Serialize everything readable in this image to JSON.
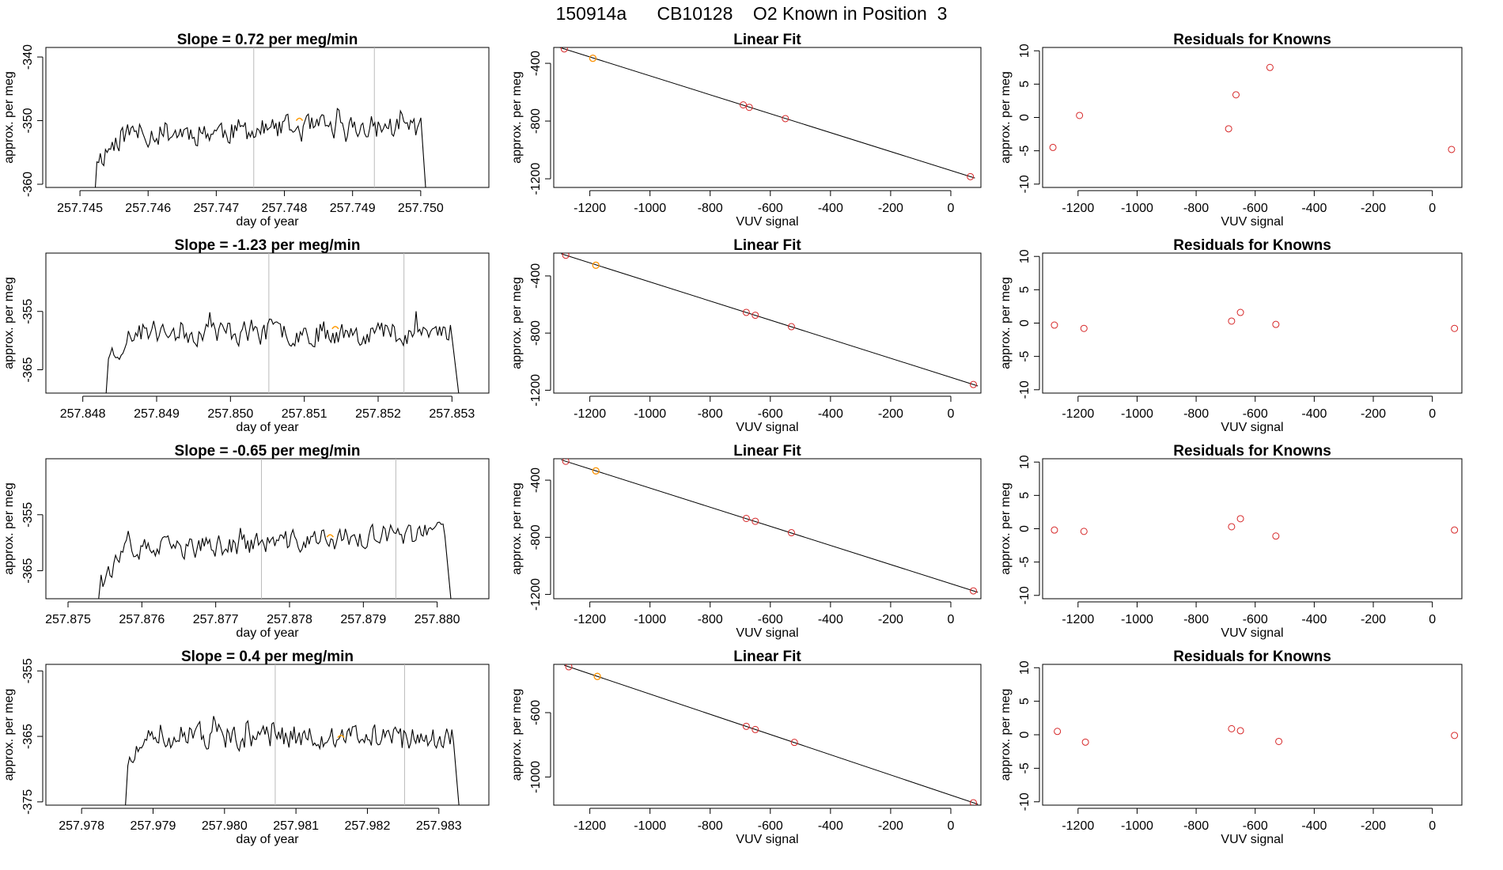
{
  "title": "150914a      CB10128    O2 Known in Position  3",
  "colors": {
    "line": "#000000",
    "point": "#d62728",
    "highlight": "#ff9900",
    "guide": "#bbbbbb",
    "axis": "#000000"
  },
  "chart_data": [
    {
      "type": "line",
      "title": "Slope =  0.72  per meg/min",
      "xlabel": "day of year",
      "ylabel": "approx. per meg",
      "xlim": [
        257.7445,
        257.751
      ],
      "ylim": [
        -360.5,
        -338.5
      ],
      "xticks": [
        "257.745",
        "257.746",
        "257.747",
        "257.748",
        "257.749",
        "257.750"
      ],
      "yticks": [
        "-340",
        "-350",
        "-360"
      ],
      "vlines": [
        257.74755,
        257.74932
      ],
      "highlight": {
        "x": 257.74822,
        "y": -350
      },
      "trace": {
        "x_start": 257.7452,
        "x_end": 257.7501,
        "baseline": -351.5,
        "amplitude": 2.8,
        "drift": 0.6,
        "seed": 11,
        "start_y": -365,
        "end_y": -365
      }
    },
    {
      "type": "line",
      "title": "Slope =  -1.23  per meg/min",
      "xlabel": "day of year",
      "ylabel": "approx. per meg",
      "xlim": [
        257.8475,
        257.8535
      ],
      "ylim": [
        -369,
        -345
      ],
      "xticks": [
        "257.848",
        "257.849",
        "257.850",
        "257.851",
        "257.852",
        "257.853"
      ],
      "yticks": [
        "-355",
        "-365"
      ],
      "vlines": [
        257.85052,
        257.85235
      ],
      "highlight": {
        "x": 257.85142,
        "y": -358
      },
      "trace": {
        "x_start": 257.8483,
        "x_end": 257.8531,
        "baseline": -358.5,
        "amplitude": 3.0,
        "drift": 0.0,
        "seed": 23,
        "start_y": -372,
        "end_y": -370
      }
    },
    {
      "type": "line",
      "title": "Slope =  -0.65  per meg/min",
      "xlabel": "day of year",
      "ylabel": "approx. per meg",
      "xlim": [
        257.8747,
        257.8807
      ],
      "ylim": [
        -370,
        -345
      ],
      "xticks": [
        "257.875",
        "257.876",
        "257.877",
        "257.878",
        "257.879",
        "257.880"
      ],
      "yticks": [
        "-355",
        "-365"
      ],
      "vlines": [
        257.87762,
        257.87944
      ],
      "highlight": {
        "x": 257.87855,
        "y": -359
      },
      "trace": {
        "x_start": 257.8754,
        "x_end": 257.8802,
        "baseline": -360,
        "amplitude": 2.8,
        "drift": 1.8,
        "seed": 37,
        "start_y": -372,
        "end_y": -372
      }
    },
    {
      "type": "line",
      "title": "Slope =  0.4  per meg/min",
      "xlabel": "day of year",
      "ylabel": "approx. per meg",
      "xlim": [
        257.9775,
        257.9837
      ],
      "ylim": [
        -375.5,
        -354
      ],
      "xticks": [
        "257.978",
        "257.979",
        "257.980",
        "257.981",
        "257.982",
        "257.983"
      ],
      "yticks": [
        "-355",
        "-365",
        "-375"
      ],
      "vlines": [
        257.98071,
        257.98252
      ],
      "highlight": {
        "x": 257.98163,
        "y": -365.2
      },
      "trace": {
        "x_start": 257.9786,
        "x_end": 257.9833,
        "baseline": -365,
        "amplitude": 2.6,
        "drift": 0.0,
        "seed": 51,
        "start_y": -378,
        "end_y": -378
      }
    },
    {
      "type": "scatter",
      "title": "Linear Fit",
      "xlabel": "VUV signal",
      "ylabel": "approx. per meg",
      "xlim": [
        -1320,
        100
      ],
      "ylim": [
        -1260,
        -290
      ],
      "xticks": [
        -1200,
        -1000,
        -800,
        -600,
        -400,
        -200,
        0
      ],
      "yticks": [
        -400,
        -800,
        -1200
      ],
      "fit_line": [
        [
          -1285,
          -300
        ],
        [
          65,
          -1185
        ]
      ],
      "points": [
        [
          -1285,
          -300
        ],
        [
          -1190,
          -365
        ],
        [
          -690,
          -688
        ],
        [
          -670,
          -705
        ],
        [
          -550,
          -783
        ],
        [
          65,
          -1185
        ]
      ],
      "highlight_points": [
        [
          -1190,
          -365
        ]
      ]
    },
    {
      "type": "scatter",
      "title": "Linear Fit",
      "xlabel": "VUV signal",
      "ylabel": "approx. per meg",
      "xlim": [
        -1320,
        100
      ],
      "ylim": [
        -1220,
        -240
      ],
      "xticks": [
        -1200,
        -1000,
        -800,
        -600,
        -400,
        -200,
        0
      ],
      "yticks": [
        -400,
        -800,
        -1200
      ],
      "fit_line": [
        [
          -1280,
          -255
        ],
        [
          75,
          -1160
        ]
      ],
      "points": [
        [
          -1280,
          -255
        ],
        [
          -1180,
          -325
        ],
        [
          -680,
          -655
        ],
        [
          -650,
          -675
        ],
        [
          -530,
          -755
        ],
        [
          75,
          -1160
        ]
      ],
      "highlight_points": [
        [
          -1180,
          -325
        ]
      ]
    },
    {
      "type": "scatter",
      "title": "Linear Fit",
      "xlabel": "VUV signal",
      "ylabel": "approx. per meg",
      "xlim": [
        -1320,
        100
      ],
      "ylim": [
        -1230,
        -250
      ],
      "xticks": [
        -1200,
        -1000,
        -800,
        -600,
        -400,
        -200,
        0
      ],
      "yticks": [
        -400,
        -800,
        -1200
      ],
      "fit_line": [
        [
          -1280,
          -268
        ],
        [
          75,
          -1175
        ]
      ],
      "points": [
        [
          -1280,
          -268
        ],
        [
          -1180,
          -335
        ],
        [
          -680,
          -668
        ],
        [
          -650,
          -688
        ],
        [
          -530,
          -768
        ],
        [
          75,
          -1175
        ]
      ],
      "highlight_points": [
        [
          -1180,
          -335
        ]
      ]
    },
    {
      "type": "scatter",
      "title": "Linear Fit",
      "xlabel": "VUV signal",
      "ylabel": "approx. per meg",
      "xlim": [
        -1320,
        100
      ],
      "ylim": [
        -1175,
        -300
      ],
      "xticks": [
        -1200,
        -1000,
        -800,
        -600,
        -400,
        -200,
        0
      ],
      "yticks": [
        -600,
        -1000
      ],
      "fit_line": [
        [
          -1270,
          -315
        ],
        [
          75,
          -1160
        ]
      ],
      "points": [
        [
          -1270,
          -315
        ],
        [
          -1175,
          -375
        ],
        [
          -680,
          -685
        ],
        [
          -650,
          -705
        ],
        [
          -520,
          -785
        ],
        [
          75,
          -1160
        ]
      ],
      "highlight_points": [
        [
          -1175,
          -375
        ]
      ]
    },
    {
      "type": "scatter",
      "title": "Residuals for Knowns",
      "xlabel": "VUV signal",
      "ylabel": "approx. per meg",
      "xlim": [
        -1320,
        100
      ],
      "ylim": [
        -10.5,
        10.5
      ],
      "xticks": [
        -1200,
        -1000,
        -800,
        -600,
        -400,
        -200,
        0
      ],
      "yticks": [
        10,
        5,
        0,
        -5,
        -10
      ],
      "points": [
        [
          -1285,
          -4.5
        ],
        [
          -1195,
          0.3
        ],
        [
          -690,
          -1.7
        ],
        [
          -665,
          3.4
        ],
        [
          -550,
          7.5
        ],
        [
          65,
          -4.8
        ]
      ]
    },
    {
      "type": "scatter",
      "title": "Residuals for Knowns",
      "xlabel": "VUV signal",
      "ylabel": "approx. per meg",
      "xlim": [
        -1320,
        100
      ],
      "ylim": [
        -10.5,
        10.5
      ],
      "xticks": [
        -1200,
        -1000,
        -800,
        -600,
        -400,
        -200,
        0
      ],
      "yticks": [
        10,
        5,
        0,
        -5,
        -10
      ],
      "points": [
        [
          -1280,
          -0.3
        ],
        [
          -1180,
          -0.8
        ],
        [
          -680,
          0.3
        ],
        [
          -650,
          1.6
        ],
        [
          -530,
          -0.2
        ],
        [
          75,
          -0.8
        ]
      ]
    },
    {
      "type": "scatter",
      "title": "Residuals for Knowns",
      "xlabel": "VUV signal",
      "ylabel": "approx. per meg",
      "xlim": [
        -1320,
        100
      ],
      "ylim": [
        -10.5,
        10.5
      ],
      "xticks": [
        -1200,
        -1000,
        -800,
        -600,
        -400,
        -200,
        0
      ],
      "yticks": [
        10,
        5,
        0,
        -5,
        -10
      ],
      "points": [
        [
          -1280,
          -0.2
        ],
        [
          -1180,
          -0.4
        ],
        [
          -680,
          0.3
        ],
        [
          -650,
          1.5
        ],
        [
          -530,
          -1.1
        ],
        [
          75,
          -0.2
        ]
      ]
    },
    {
      "type": "scatter",
      "title": "Residuals for Knowns",
      "xlabel": "VUV signal",
      "ylabel": "approx. per meg",
      "xlim": [
        -1320,
        100
      ],
      "ylim": [
        -10.5,
        10.5
      ],
      "xticks": [
        -1200,
        -1000,
        -800,
        -600,
        -400,
        -200,
        0
      ],
      "yticks": [
        10,
        5,
        0,
        -5,
        -10
      ],
      "points": [
        [
          -1270,
          0.5
        ],
        [
          -1175,
          -1.1
        ],
        [
          -680,
          0.9
        ],
        [
          -650,
          0.6
        ],
        [
          -520,
          -1.0
        ],
        [
          75,
          -0.1
        ]
      ]
    }
  ]
}
